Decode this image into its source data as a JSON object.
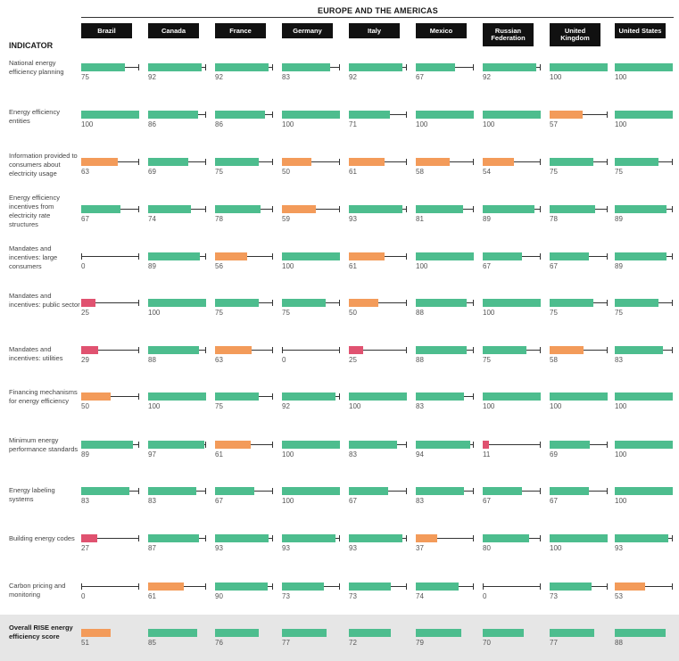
{
  "chart_data": {
    "type": "bar",
    "title": "EUROPE AND THE AMERICAS",
    "indicator_header": "INDICATOR",
    "xlim": [
      0,
      100
    ],
    "categories": [
      "Brazil",
      "Canada",
      "France",
      "Germany",
      "Italy",
      "Mexico",
      "Russian Federation",
      "United Kingdom",
      "United States"
    ],
    "category_labels": [
      "Brazil",
      "Canada",
      "France",
      "Germany",
      "Italy",
      "Mexico",
      "Russian\nFederation",
      "United\nKingdom",
      "United States"
    ],
    "colors": {
      "green": "#4dbd8e",
      "orange": "#f39b5a",
      "red": "#e05270"
    },
    "color_rule": "green if value >= 67, orange if 34-66, red if <= 33",
    "series": [
      {
        "name": "National energy efficiency planning",
        "values": [
          75,
          92,
          92,
          83,
          92,
          67,
          92,
          100,
          100
        ]
      },
      {
        "name": "Energy efficiency entities",
        "values": [
          100,
          86,
          86,
          100,
          71,
          100,
          100,
          57,
          100
        ]
      },
      {
        "name": "Information provided to consumers about electricity usage",
        "values": [
          63,
          69,
          75,
          50,
          61,
          58,
          54,
          75,
          75
        ]
      },
      {
        "name": "Energy efficiency incentives from electricity rate structures",
        "values": [
          67,
          74,
          78,
          59,
          93,
          81,
          89,
          78,
          89
        ]
      },
      {
        "name": "Mandates and incentives: large consumers",
        "values": [
          0,
          89,
          56,
          100,
          61,
          100,
          67,
          67,
          89
        ]
      },
      {
        "name": "Mandates and incentives: public sector",
        "values": [
          25,
          100,
          75,
          75,
          50,
          88,
          100,
          75,
          75
        ]
      },
      {
        "name": "Mandates and incentives: utilities",
        "values": [
          29,
          88,
          63,
          0,
          25,
          88,
          75,
          58,
          83
        ]
      },
      {
        "name": "Financing mechanisms for energy efficiency",
        "values": [
          50,
          100,
          75,
          92,
          100,
          83,
          100,
          100,
          100
        ]
      },
      {
        "name": "Minimum energy performance standards",
        "values": [
          89,
          97,
          61,
          100,
          83,
          94,
          11,
          69,
          100
        ]
      },
      {
        "name": "Energy labeling systems",
        "values": [
          83,
          83,
          67,
          100,
          67,
          83,
          67,
          67,
          100
        ]
      },
      {
        "name": "Building energy codes",
        "values": [
          27,
          87,
          93,
          93,
          93,
          37,
          80,
          100,
          93
        ]
      },
      {
        "name": "Carbon pricing and monitoring",
        "values": [
          0,
          61,
          90,
          73,
          73,
          74,
          0,
          73,
          53
        ]
      },
      {
        "name": "Overall RISE energy efficiency score",
        "values": [
          51,
          85,
          76,
          77,
          72,
          79,
          70,
          77,
          88
        ]
      }
    ]
  }
}
